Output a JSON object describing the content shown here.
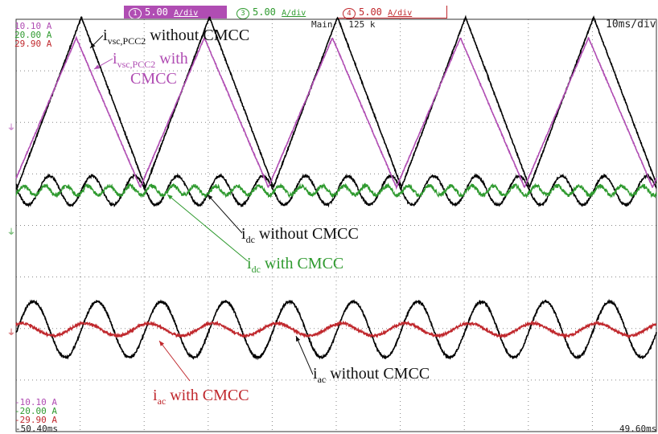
{
  "scope": {
    "channels": [
      {
        "id": "1",
        "scale": "5.00",
        "unit": "A/div",
        "color": "#b04db3"
      },
      {
        "id": "3",
        "scale": "5.00",
        "unit": "A/div",
        "color": "#2f9a2f"
      },
      {
        "id": "4",
        "scale": "5.00",
        "unit": "A/div",
        "color": "#c0282d"
      }
    ],
    "main_label": "Main : 125 k",
    "time_div": "10ms/div",
    "offsets_top": [
      "10.10 A",
      "20.00 A",
      "29.90 A"
    ],
    "offsets_bottom": [
      "-10.10 A",
      "-20.00 A",
      "-29.90 A"
    ],
    "time_start": "-50.40ms",
    "time_end": "49.60ms"
  },
  "labels": {
    "vsc_without": {
      "main": "i",
      "sub": "vsc,PCC2",
      "rest": " without CMCC"
    },
    "vsc_with": {
      "main": "i",
      "sub": "vsc,PCC2",
      "rest": " with",
      "line2": "CMCC"
    },
    "dc_without": {
      "main": "i",
      "sub": "dc",
      "rest": " without CMCC"
    },
    "dc_with": {
      "main": "i",
      "sub": "dc",
      "rest": " with CMCC"
    },
    "ac_without": {
      "main": "i",
      "sub": "ac",
      "rest": " without CMCC"
    },
    "ac_with": {
      "main": "i",
      "sub": "ac",
      "rest": " with CMCC"
    }
  },
  "chart_data": {
    "type": "line",
    "x_unit": "ms",
    "xlim": [
      -50.4,
      49.6
    ],
    "x_div": 10,
    "y_unit": "A",
    "y_div": 5,
    "colors": {
      "without": "#000000",
      "vsc_with": "#b04db3",
      "dc_with": "#2f9a2f",
      "ac_with": "#c0282d"
    },
    "ripple_period_ms": 20,
    "ripple_peaks_ms": [
      -40.2,
      -20.2,
      -0.2,
      19.8,
      39.8
    ],
    "series": [
      {
        "name": "ivsc,PCC2 without CMCC",
        "min": 0.0,
        "max": 16.5
      },
      {
        "name": "ivsc,PCC2 with CMCC",
        "min": 0.0,
        "max": 14.5
      },
      {
        "name": "idc without CMCC",
        "mean": 0.0,
        "ripple_pp": 2.8
      },
      {
        "name": "idc with CMCC",
        "mean": 0.0,
        "ripple_pp": 0.9
      },
      {
        "name": "iac without CMCC",
        "mean": 0.0,
        "amplitude": 2.7
      },
      {
        "name": "iac with CMCC",
        "mean": 0.0,
        "amplitude": 0.6
      }
    ]
  }
}
